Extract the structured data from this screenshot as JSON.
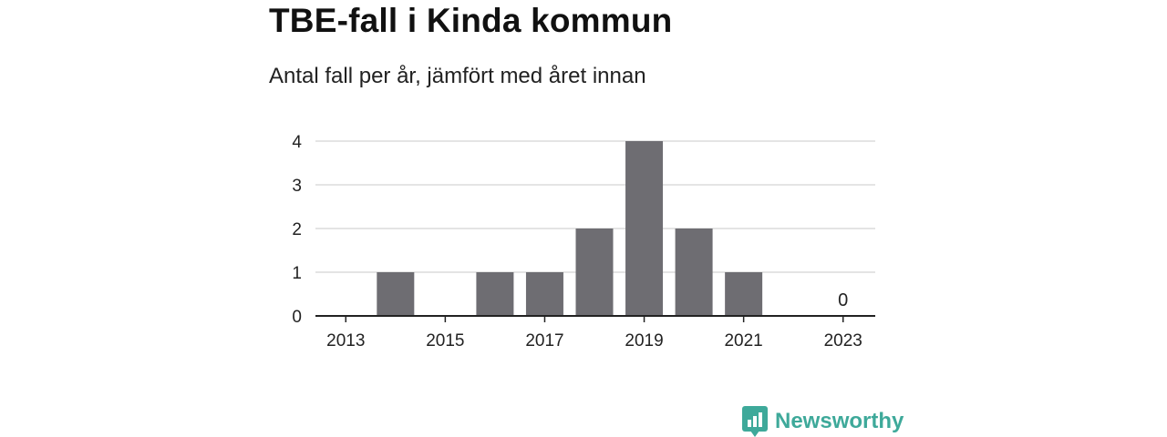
{
  "title": "TBE-fall i Kinda kommun",
  "subtitle": "Antal fall per år, jämfört med året innan",
  "brand": {
    "name": "Newsworthy",
    "icon": "newsworthy-logo-icon",
    "color": "#3ea99a"
  },
  "chart_data": {
    "type": "bar",
    "categories": [
      "2013",
      "2014",
      "2015",
      "2016",
      "2017",
      "2018",
      "2019",
      "2020",
      "2021",
      "2022",
      "2023"
    ],
    "x_tick_labels": [
      "2013",
      "2015",
      "2017",
      "2019",
      "2021",
      "2023"
    ],
    "values": [
      0,
      1,
      0,
      1,
      1,
      2,
      4,
      2,
      1,
      0,
      0
    ],
    "data_labels": [
      {
        "category": "2023",
        "text": "0"
      }
    ],
    "ylim": [
      0,
      4
    ],
    "y_ticks": [
      0,
      1,
      2,
      3,
      4
    ],
    "grid": true,
    "bar_color": "#6e6d72",
    "grid_color": "#dcdcdc",
    "axis_color": "#222222"
  }
}
